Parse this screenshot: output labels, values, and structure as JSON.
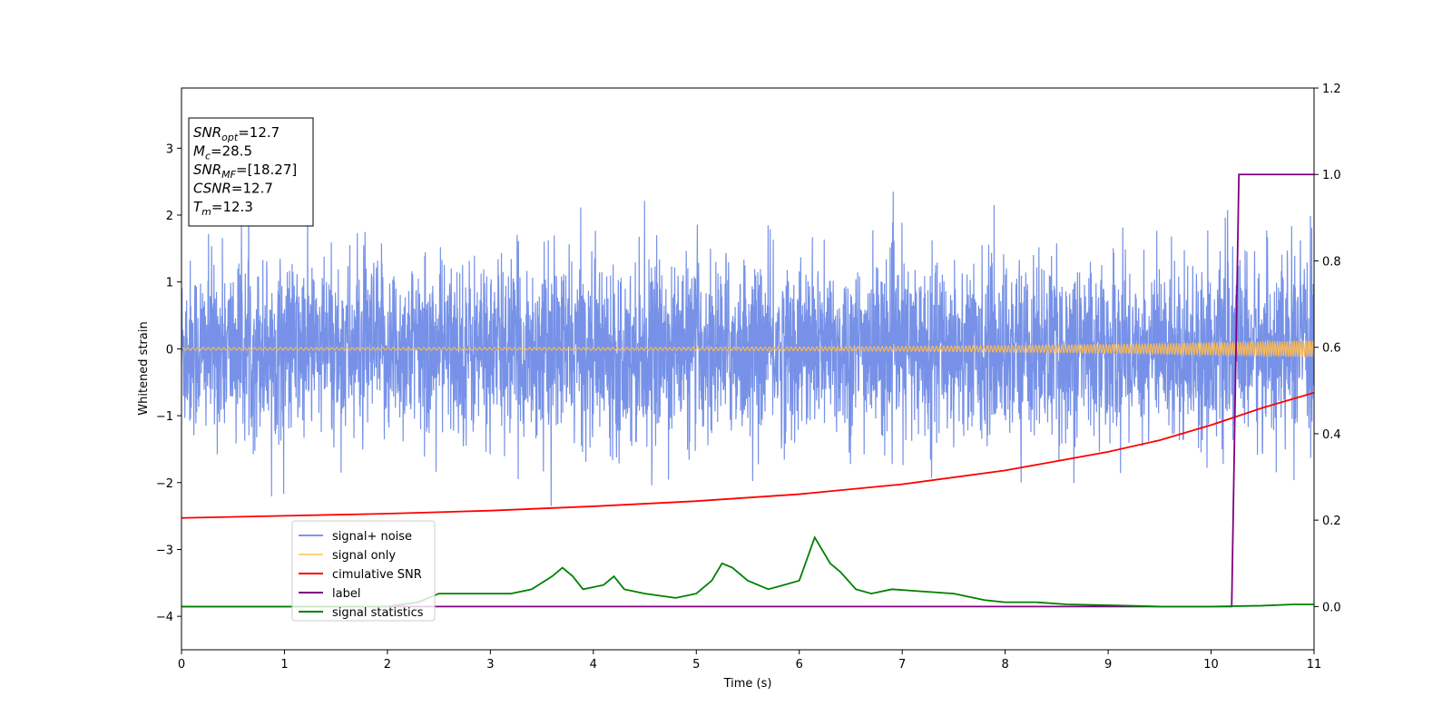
{
  "chart_data": {
    "type": "line",
    "xlabel": "Time (s)",
    "ylabel": "Whitened strain",
    "xlim": [
      0,
      11
    ],
    "ylim_left": [
      -4.5,
      3.9
    ],
    "ylim_right": [
      -0.1,
      1.2
    ],
    "x_ticks": [
      "0",
      "1",
      "2",
      "3",
      "4",
      "5",
      "6",
      "7",
      "8",
      "9",
      "10",
      "11"
    ],
    "y_left_ticks": [
      "3",
      "2",
      "1",
      "0",
      "−1",
      "−2",
      "−3",
      "−4"
    ],
    "y_right_ticks": [
      "1.2",
      "1.0",
      "0.8",
      "0.6",
      "0.4",
      "0.2",
      "0.0"
    ],
    "annotation": [
      {
        "base": "SNR",
        "sub": "opt",
        "rest": "=12.7"
      },
      {
        "base": "M",
        "sub": "c",
        "rest": "=28.5"
      },
      {
        "base": "SNR",
        "sub": "MF",
        "rest": "=[18.27]"
      },
      {
        "base": "CSNR",
        "sub": "",
        "rest": "=12.7"
      },
      {
        "base": "T",
        "sub": "m",
        "rest": "=12.3"
      }
    ],
    "legend": [
      {
        "label": "signal+ noise",
        "color": "#7b96e8"
      },
      {
        "label": "signal only",
        "color": "#ffd27f"
      },
      {
        "label": "cimulative SNR",
        "color": "#ff0000"
      },
      {
        "label": "label",
        "color": "#800080"
      },
      {
        "label": "signal statistics",
        "color": "#008000"
      }
    ],
    "legend_position": "lower-left",
    "series": [
      {
        "name": "signal+ noise",
        "axis": "left",
        "color": "#6f8be6",
        "description": "noisy whitened strain, roughly ±1.3 with spikes up to ±2.3, centered at 0",
        "amplitude": 1.3
      },
      {
        "name": "signal only",
        "axis": "left",
        "color": "#f5b85c",
        "description": "chirp signal, amplitude grows toward end",
        "amplitude_start": 0.02,
        "amplitude_end": 0.12
      },
      {
        "name": "cimulative SNR",
        "axis": "right",
        "color": "#ff0000",
        "x": [
          0,
          1,
          2,
          3,
          4,
          5,
          6,
          7,
          8,
          9,
          9.5,
          10,
          10.5,
          11
        ],
        "values": [
          0.205,
          0.21,
          0.215,
          0.222,
          0.232,
          0.244,
          0.26,
          0.283,
          0.315,
          0.358,
          0.385,
          0.42,
          0.46,
          0.495
        ]
      },
      {
        "name": "label",
        "axis": "right",
        "color": "#800080",
        "x": [
          0,
          10.2,
          10.27,
          11
        ],
        "values": [
          0.0,
          0.0,
          1.0,
          1.0
        ]
      },
      {
        "name": "signal statistics",
        "axis": "right",
        "color": "#008000",
        "x": [
          0,
          1,
          2,
          2.3,
          2.5,
          2.7,
          3,
          3.2,
          3.4,
          3.6,
          3.7,
          3.8,
          3.9,
          4.1,
          4.2,
          4.3,
          4.5,
          4.8,
          5.0,
          5.15,
          5.25,
          5.35,
          5.5,
          5.7,
          5.85,
          6.0,
          6.15,
          6.3,
          6.4,
          6.55,
          6.7,
          6.9,
          7.2,
          7.5,
          7.8,
          8.0,
          8.3,
          8.6,
          9.0,
          9.5,
          10.0,
          10.5,
          10.8,
          11
        ],
        "values": [
          0.0,
          0.0,
          0.0,
          0.01,
          0.03,
          0.03,
          0.03,
          0.03,
          0.04,
          0.07,
          0.09,
          0.07,
          0.04,
          0.05,
          0.07,
          0.04,
          0.03,
          0.02,
          0.03,
          0.06,
          0.1,
          0.09,
          0.06,
          0.04,
          0.05,
          0.06,
          0.16,
          0.1,
          0.08,
          0.04,
          0.03,
          0.04,
          0.035,
          0.03,
          0.015,
          0.01,
          0.01,
          0.005,
          0.003,
          0.0,
          0.0,
          0.002,
          0.005,
          0.005
        ]
      }
    ]
  }
}
